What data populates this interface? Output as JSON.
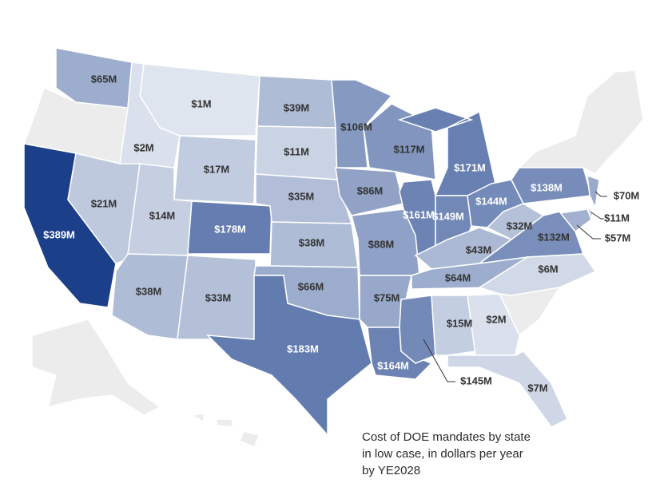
{
  "chart_data": {
    "type": "choropleth",
    "caption": "Cost of DOE mandates by state in low case, in dollars per year by YE2028",
    "values": [
      65,
      1,
      39,
      106,
      117,
      171,
      2,
      17,
      11,
      389,
      21,
      14,
      178,
      35,
      86,
      161,
      149,
      144,
      138,
      70,
      11,
      57,
      38,
      88,
      43,
      32,
      132,
      38,
      33,
      66,
      75,
      64,
      6,
      183,
      164,
      145,
      15,
      2,
      7
    ],
    "value_labels": [
      "$65M",
      "$1M",
      "$39M",
      "$106M",
      "$117M",
      "$171M",
      "$2M",
      "$17M",
      "$11M",
      "$389M",
      "$21M",
      "$14M",
      "$178M",
      "$35M",
      "$86M",
      "$161M",
      "$149M",
      "$144M",
      "$138M",
      "$70M",
      "$11M",
      "$57M",
      "$38M",
      "$88M",
      "$43M",
      "$32M",
      "$132M",
      "$38M",
      "$33M",
      "$66M",
      "$75M",
      "$64M",
      "$6M",
      "$183M",
      "$164M",
      "$145M",
      "$15M",
      "$2M",
      "$7M"
    ],
    "color_range": [
      "#dfe5ef",
      "#1c3f8a"
    ],
    "no_data_color": "#ececec"
  }
}
